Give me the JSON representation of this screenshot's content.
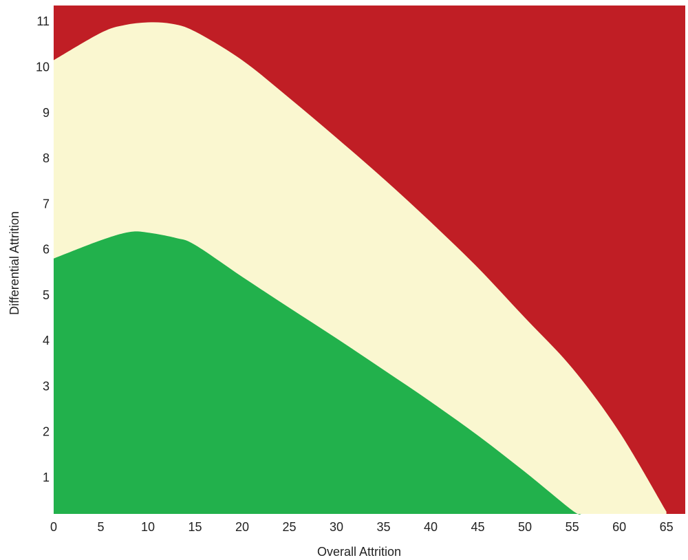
{
  "chart_data": {
    "type": "area",
    "title": "",
    "xlabel": "Overall Attrition",
    "ylabel": "Differential Attrition",
    "xlim": [
      0,
      67
    ],
    "ylim": [
      0.2,
      11.35
    ],
    "xticks": [
      0,
      5,
      10,
      15,
      20,
      25,
      30,
      35,
      40,
      45,
      50,
      55,
      60,
      65
    ],
    "yticks": [
      1,
      2,
      3,
      4,
      5,
      6,
      7,
      8,
      9,
      10,
      11
    ],
    "grid": false,
    "legend": "none",
    "background_color": "#c01e25",
    "regions": [
      {
        "color": "#c01e25",
        "fill_to": "top"
      },
      {
        "color": "#faf7d0",
        "boundary": {
          "x": [
            0,
            5,
            7.5,
            10,
            12.5,
            15,
            20,
            25,
            30,
            35,
            40,
            45,
            50,
            55,
            60,
            65
          ],
          "y": [
            10.15,
            10.75,
            10.92,
            10.98,
            10.95,
            10.78,
            10.15,
            9.32,
            8.45,
            7.55,
            6.6,
            5.6,
            4.5,
            3.4,
            2.0,
            0.25
          ]
        }
      },
      {
        "color": "#22b14c",
        "boundary": {
          "x": [
            0,
            5,
            8,
            10,
            13,
            15,
            20,
            25,
            30,
            35,
            40,
            45,
            50,
            55,
            56
          ],
          "y": [
            5.8,
            6.2,
            6.38,
            6.37,
            6.25,
            6.1,
            5.4,
            4.72,
            4.05,
            3.36,
            2.66,
            1.92,
            1.12,
            0.28,
            0.2
          ]
        }
      }
    ]
  }
}
